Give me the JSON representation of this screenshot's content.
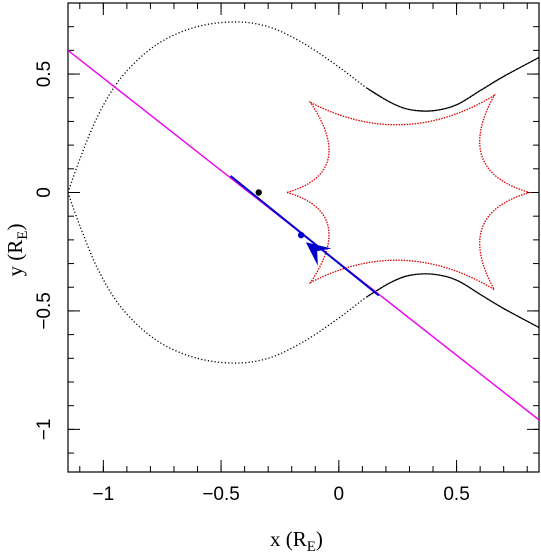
{
  "chart_data": {
    "type": "line",
    "xlabel": "x (R",
    "xlabel_sub": "E",
    "xlabel_close": ")",
    "ylabel": "y (R",
    "ylabel_sub": "E",
    "ylabel_close": ")",
    "xlim": [
      -1.15,
      0.85
    ],
    "ylim": [
      -1.18,
      0.8
    ],
    "x_ticks": [
      {
        "value": -1,
        "label": "−1"
      },
      {
        "value": -0.5,
        "label": "−0.5"
      },
      {
        "value": 0,
        "label": "0"
      },
      {
        "value": 0.5,
        "label": "0.5"
      }
    ],
    "y_ticks": [
      {
        "value": 0.5,
        "label": "0.5"
      },
      {
        "value": 0,
        "label": "0"
      },
      {
        "value": -0.5,
        "label": "−0.5"
      },
      {
        "value": -1,
        "label": "−1"
      }
    ],
    "grid": false,
    "colors": {
      "critical_curve": "#000000",
      "caustic": "#e00000",
      "source_trajectory": "#ee00ee",
      "observed_segment": "#0000cc"
    },
    "critical_curve": {
      "style": "dotted",
      "points": [
        [
          -1.15,
          0
        ],
        [
          -1.1,
          -0.14
        ],
        [
          -1.02,
          -0.33
        ],
        [
          -0.92,
          -0.49
        ],
        [
          -0.78,
          -0.62
        ],
        [
          -0.62,
          -0.695
        ],
        [
          -0.45,
          -0.72
        ],
        [
          -0.3,
          -0.7
        ],
        [
          -0.15,
          -0.63
        ],
        [
          0.0,
          -0.53
        ],
        [
          0.12,
          -0.44
        ],
        [
          0.22,
          -0.38
        ],
        [
          0.3,
          -0.35
        ],
        [
          0.4,
          -0.345
        ],
        [
          0.5,
          -0.37
        ],
        [
          0.6,
          -0.43
        ],
        [
          0.7,
          -0.49
        ],
        [
          0.85,
          -0.57
        ]
      ],
      "points_upper": [
        [
          -1.15,
          0
        ],
        [
          -1.1,
          0.14
        ],
        [
          -1.02,
          0.33
        ],
        [
          -0.92,
          0.49
        ],
        [
          -0.78,
          0.62
        ],
        [
          -0.62,
          0.695
        ],
        [
          -0.45,
          0.72
        ],
        [
          -0.3,
          0.7
        ],
        [
          -0.15,
          0.63
        ],
        [
          0.0,
          0.53
        ],
        [
          0.12,
          0.44
        ],
        [
          0.22,
          0.38
        ],
        [
          0.3,
          0.35
        ],
        [
          0.4,
          0.345
        ],
        [
          0.5,
          0.37
        ],
        [
          0.6,
          0.43
        ],
        [
          0.7,
          0.49
        ],
        [
          0.85,
          0.57
        ]
      ]
    },
    "caustic": {
      "cusps": [
        [
          -0.22,
          0
        ],
        [
          -0.12,
          0.38
        ],
        [
          0.66,
          0.41
        ],
        [
          0.81,
          0
        ],
        [
          0.66,
          -0.41
        ],
        [
          -0.12,
          -0.38
        ]
      ]
    },
    "source_trajectory": {
      "line": [
        [
          -1.15,
          0.6
        ],
        [
          0.85,
          -0.96
        ]
      ],
      "observed_segment": [
        [
          -0.46,
          0.07
        ],
        [
          0.17,
          -0.435
        ]
      ],
      "arrow_tip": [
        -0.14,
        -0.21
      ],
      "arrow_direction_from": [
        0.0,
        -0.32
      ]
    },
    "points": [
      {
        "name": "lens-mass",
        "x": -0.34,
        "y": 0.0
      },
      {
        "name": "source-position",
        "x": -0.16,
        "y": -0.18
      }
    ]
  }
}
